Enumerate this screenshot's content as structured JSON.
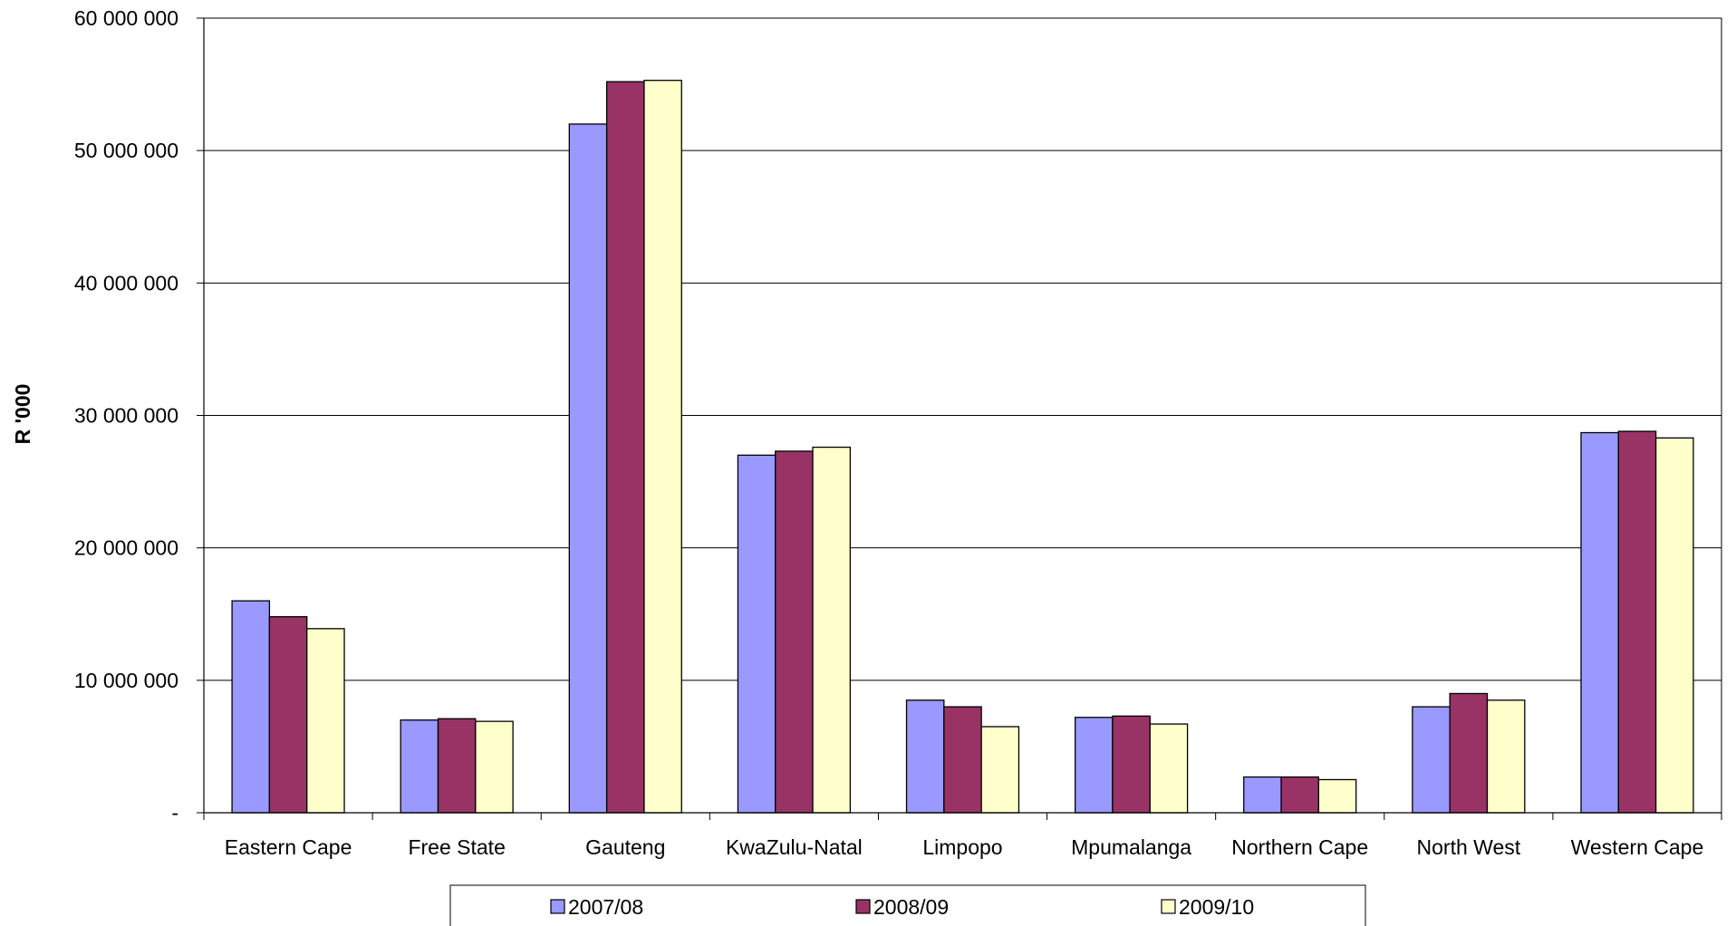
{
  "chart_data": {
    "type": "bar",
    "ylabel": "R '000",
    "ylim": [
      0,
      60000000
    ],
    "yticks": [
      0,
      10000000,
      20000000,
      30000000,
      40000000,
      50000000,
      60000000
    ],
    "ytick_labels": [
      "-",
      "10 000 000",
      "20 000 000",
      "30 000 000",
      "40 000 000",
      "50 000 000",
      "60 000 000"
    ],
    "grid": true,
    "legend_position": "bottom",
    "categories": [
      "Eastern Cape",
      "Free State",
      "Gauteng",
      "KwaZulu-Natal",
      "Limpopo",
      "Mpumalanga",
      "Northern Cape",
      "North West",
      "Western Cape"
    ],
    "series": [
      {
        "name": "2007/08",
        "color": "#9999ff",
        "values": [
          16000000,
          7000000,
          52000000,
          27000000,
          8500000,
          7200000,
          2700000,
          8000000,
          28700000
        ]
      },
      {
        "name": "2008/09",
        "color": "#993366",
        "values": [
          14800000,
          7100000,
          55200000,
          27300000,
          8000000,
          7300000,
          2700000,
          9000000,
          28800000
        ]
      },
      {
        "name": "2009/10",
        "color": "#ffffcc",
        "values": [
          13900000,
          6900000,
          55300000,
          27600000,
          6500000,
          6700000,
          2500000,
          8500000,
          28300000
        ]
      }
    ]
  }
}
